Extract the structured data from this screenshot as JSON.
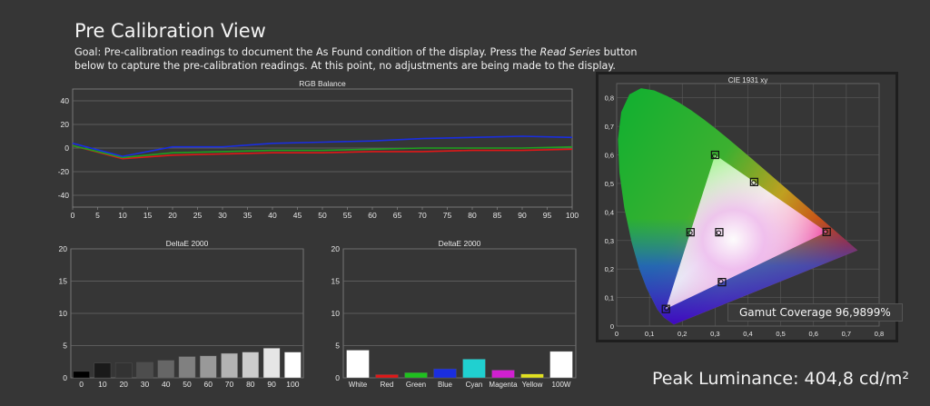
{
  "page": {
    "title": "Pre Calibration View",
    "goal_part1": "Goal: Pre-calibration readings to document the As Found condition of the display. Press the ",
    "goal_em": "Read Series",
    "goal_part2": " button below to capture the pre-calibration readings. At this point, no adjustments are being made to the display.",
    "peak_luminance": "Peak Luminance: 404,8 cd/m²",
    "gamut_coverage": "Gamut Coverage 96,9899%"
  },
  "chart_data": [
    {
      "id": "rgb",
      "type": "line",
      "title": "RGB Balance",
      "x": [
        0,
        10,
        20,
        30,
        40,
        50,
        60,
        70,
        80,
        90,
        100
      ],
      "x_ticks": [
        0,
        5,
        10,
        15,
        20,
        25,
        30,
        35,
        40,
        45,
        50,
        55,
        60,
        65,
        70,
        75,
        80,
        85,
        90,
        95,
        100
      ],
      "ylim": [
        -50,
        50
      ],
      "y_ticks": [
        40,
        20,
        0,
        -20,
        -40
      ],
      "grid": true,
      "colors": {
        "red": "#e01818",
        "green": "#1fa01f",
        "blue": "#1a2ee0"
      },
      "series": [
        {
          "key": "red",
          "values": [
            2,
            -9,
            -6,
            -5,
            -4,
            -4,
            -3,
            -3,
            -2,
            -2,
            -1
          ]
        },
        {
          "key": "green",
          "values": [
            2,
            -8,
            -4,
            -3,
            -2,
            -2,
            -1,
            0,
            0,
            0,
            1
          ]
        },
        {
          "key": "blue",
          "values": [
            4,
            -7,
            1,
            1,
            4,
            5,
            6,
            8,
            9,
            10,
            9
          ]
        }
      ]
    },
    {
      "id": "de_gray",
      "type": "bar",
      "title": "DeltaE 2000",
      "categories": [
        "0",
        "10",
        "20",
        "30",
        "40",
        "50",
        "60",
        "70",
        "80",
        "90",
        "100"
      ],
      "values": [
        1.0,
        2.3,
        2.3,
        2.4,
        2.7,
        3.3,
        3.4,
        3.8,
        4.0,
        4.6,
        4.0
      ],
      "colors": [
        "#000000",
        "#1a1a1a",
        "#333333",
        "#4d4d4d",
        "#666666",
        "#808080",
        "#999999",
        "#b3b3b3",
        "#cccccc",
        "#e6e6e6",
        "#ffffff"
      ],
      "ylim": [
        0,
        20
      ],
      "y_ticks": [
        20,
        15,
        10,
        5,
        0
      ],
      "grid": true
    },
    {
      "id": "de_color",
      "type": "bar",
      "title": "DeltaE 2000",
      "categories": [
        "White",
        "Red",
        "Green",
        "Blue",
        "Cyan",
        "Magenta",
        "Yellow",
        "100W"
      ],
      "values": [
        4.3,
        0.5,
        0.8,
        1.4,
        2.9,
        1.2,
        0.6,
        4.1
      ],
      "colors": [
        "#ffffff",
        "#e01818",
        "#1fc01f",
        "#1a2ee0",
        "#20d0d0",
        "#d020d0",
        "#e0e020",
        "#ffffff"
      ],
      "ylim": [
        0,
        20
      ],
      "y_ticks": [
        20,
        15,
        10,
        5,
        0
      ],
      "grid": true
    },
    {
      "id": "cie",
      "type": "scatter",
      "title": "CIE 1931 xy",
      "xlim": [
        0,
        0.8
      ],
      "ylim": [
        0,
        0.85
      ],
      "x_ticks": [
        "0",
        "0,1",
        "0,2",
        "0,3",
        "0,4",
        "0,5",
        "0,6",
        "0,7",
        "0,8"
      ],
      "y_ticks": [
        "0",
        "0,1",
        "0,2",
        "0,3",
        "0,4",
        "0,5",
        "0,6",
        "0,7",
        "0,8"
      ],
      "gamut_triangle": [
        [
          0.64,
          0.33
        ],
        [
          0.3,
          0.6
        ],
        [
          0.15,
          0.06
        ]
      ],
      "targets": [
        [
          0.64,
          0.33
        ],
        [
          0.3,
          0.6
        ],
        [
          0.15,
          0.06
        ],
        [
          0.225,
          0.329
        ],
        [
          0.321,
          0.154
        ],
        [
          0.419,
          0.505
        ],
        [
          0.3127,
          0.329
        ]
      ],
      "measured": [
        [
          0.637,
          0.331
        ],
        [
          0.298,
          0.596
        ],
        [
          0.152,
          0.062
        ],
        [
          0.224,
          0.327
        ],
        [
          0.318,
          0.156
        ],
        [
          0.418,
          0.503
        ],
        [
          0.311,
          0.327
        ]
      ]
    }
  ]
}
